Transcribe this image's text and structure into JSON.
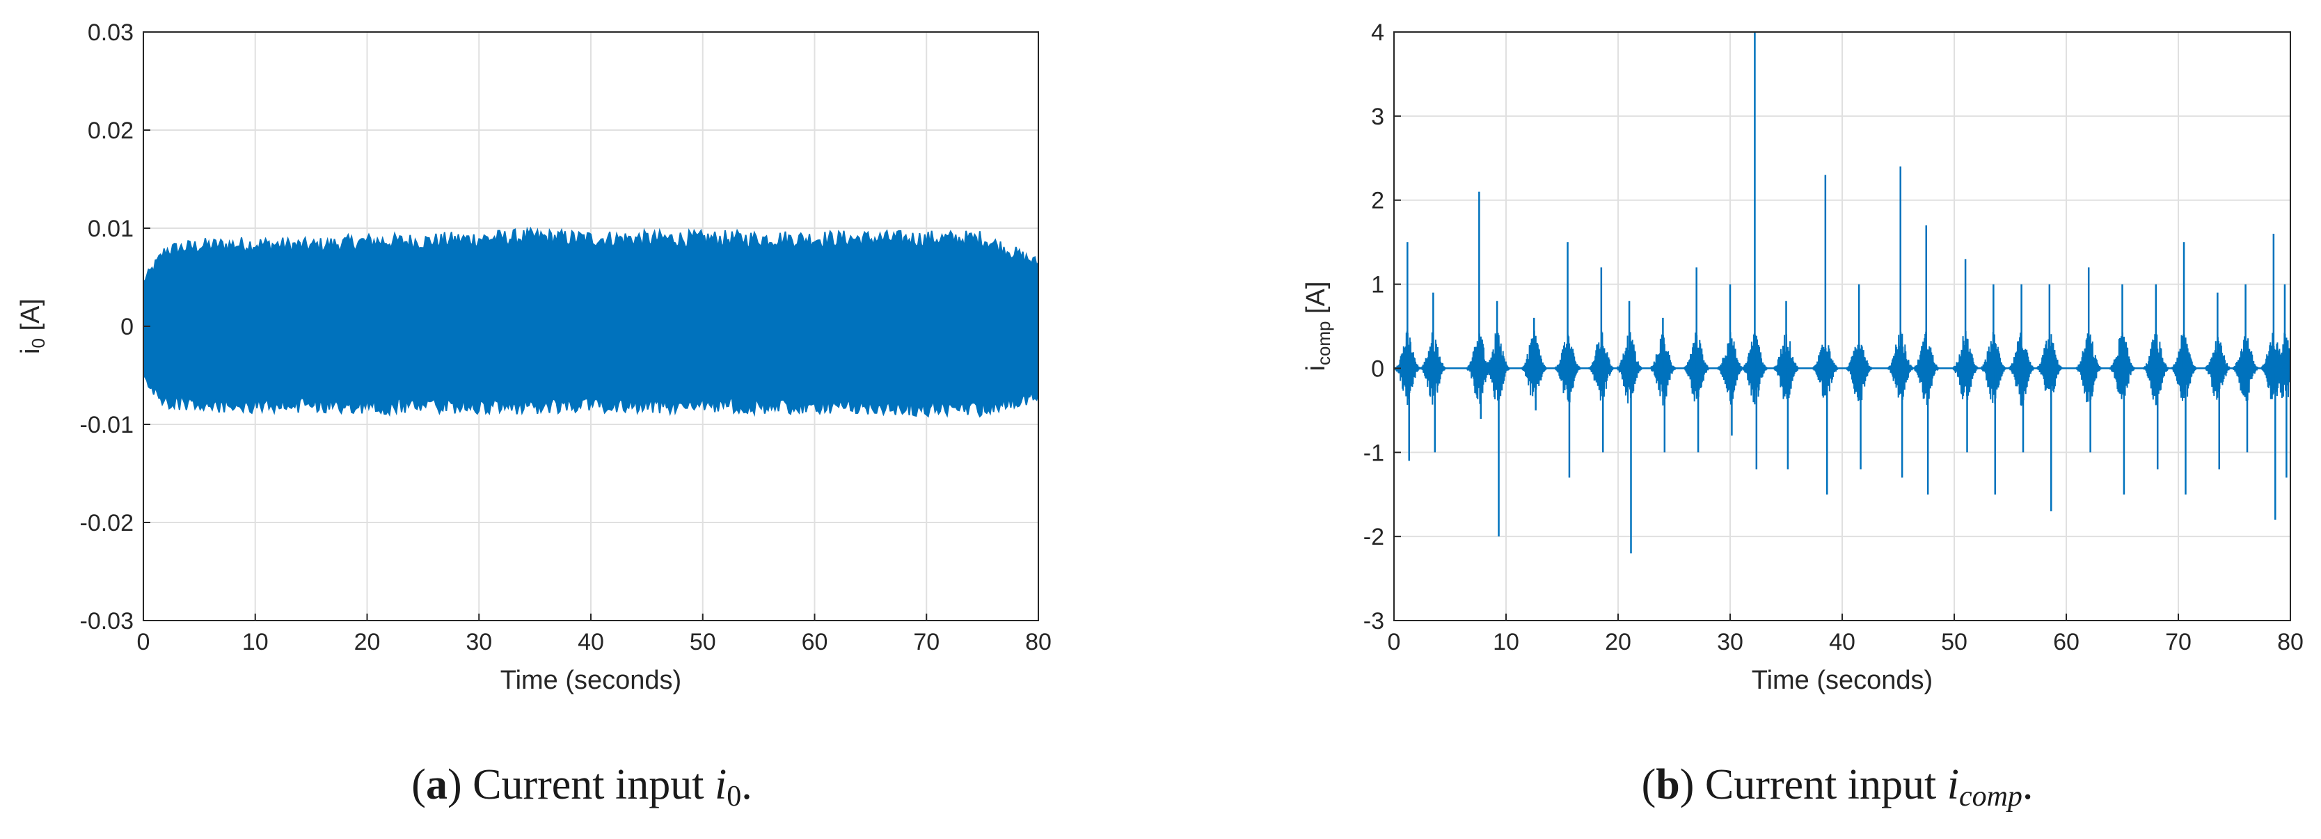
{
  "colors": {
    "series": "#0072BD",
    "grid": "#e0e0e0",
    "axis": "#262626"
  },
  "captions": [
    {
      "letter": "a",
      "text": "Current input",
      "var_main": "i",
      "var_sub": "0"
    },
    {
      "letter": "b",
      "text": "Current input",
      "var_main": "i",
      "var_sub": "comp"
    }
  ],
  "chart_data": [
    {
      "type": "line",
      "xlabel": "Time (seconds)",
      "ylabel_main": "i",
      "ylabel_sub": "0",
      "ylabel_unit": "[A]",
      "xlim": [
        0,
        80
      ],
      "ylim": [
        -0.03,
        0.03
      ],
      "xticks": [
        0,
        10,
        20,
        30,
        40,
        50,
        60,
        70,
        80
      ],
      "yticks": [
        -0.03,
        -0.02,
        -0.01,
        0,
        0.01,
        0.02,
        0.03
      ],
      "ytick_labels": [
        "-0.03",
        "-0.02",
        "-0.01",
        "0",
        "0.01",
        "0.02",
        "0.03"
      ],
      "grid": true,
      "envelope": {
        "x": [
          0,
          2,
          5,
          10,
          15,
          20,
          25,
          30,
          35,
          40,
          45,
          50,
          55,
          60,
          65,
          70,
          75,
          80
        ],
        "upper": [
          0.005,
          0.0085,
          0.009,
          0.0092,
          0.009,
          0.0095,
          0.0095,
          0.0098,
          0.01,
          0.0098,
          0.0098,
          0.0098,
          0.0098,
          0.0098,
          0.0098,
          0.0098,
          0.0098,
          0.007
        ],
        "lower": [
          -0.006,
          -0.0085,
          -0.0088,
          -0.009,
          -0.0088,
          -0.009,
          -0.009,
          -0.009,
          -0.009,
          -0.009,
          -0.009,
          -0.009,
          -0.009,
          -0.009,
          -0.009,
          -0.0092,
          -0.0092,
          -0.008
        ]
      }
    },
    {
      "type": "line",
      "xlabel": "Time (seconds)",
      "ylabel_main": "i",
      "ylabel_sub": "comp",
      "ylabel_unit": "[A]",
      "xlim": [
        0,
        80
      ],
      "ylim": [
        -3,
        4
      ],
      "xticks": [
        0,
        10,
        20,
        30,
        40,
        50,
        60,
        70,
        80
      ],
      "yticks": [
        -3,
        -2,
        -1,
        0,
        1,
        2,
        3,
        4
      ],
      "ytick_labels": [
        "-3",
        "-2",
        "-1",
        "0",
        "1",
        "2",
        "3",
        "4"
      ],
      "grid": true,
      "baseline": 0,
      "bursts": [
        {
          "x": 1.2,
          "high": 1.5,
          "low": -1.1
        },
        {
          "x": 3.5,
          "high": 0.9,
          "low": -1.0
        },
        {
          "x": 7.6,
          "high": 2.1,
          "low": -0.6
        },
        {
          "x": 9.2,
          "high": 0.8,
          "low": -2.0
        },
        {
          "x": 12.5,
          "high": 0.6,
          "low": -0.5
        },
        {
          "x": 15.5,
          "high": 1.5,
          "low": -1.3
        },
        {
          "x": 18.5,
          "high": 1.2,
          "low": -1.0
        },
        {
          "x": 21.0,
          "high": 0.8,
          "low": -2.2
        },
        {
          "x": 24.0,
          "high": 0.6,
          "low": -1.0
        },
        {
          "x": 27.0,
          "high": 1.2,
          "low": -1.0
        },
        {
          "x": 30.0,
          "high": 1.0,
          "low": -0.8
        },
        {
          "x": 32.2,
          "high": 4.0,
          "low": -1.2
        },
        {
          "x": 35.0,
          "high": 0.8,
          "low": -1.2
        },
        {
          "x": 38.5,
          "high": 2.3,
          "low": -1.5
        },
        {
          "x": 41.5,
          "high": 1.0,
          "low": -1.2
        },
        {
          "x": 45.2,
          "high": 2.4,
          "low": -1.3
        },
        {
          "x": 47.5,
          "high": 1.7,
          "low": -1.5
        },
        {
          "x": 51.0,
          "high": 1.3,
          "low": -1.0
        },
        {
          "x": 53.5,
          "high": 1.0,
          "low": -1.5
        },
        {
          "x": 56.0,
          "high": 1.0,
          "low": -1.0
        },
        {
          "x": 58.5,
          "high": 1.0,
          "low": -1.7
        },
        {
          "x": 62.0,
          "high": 1.2,
          "low": -1.0
        },
        {
          "x": 65.0,
          "high": 1.0,
          "low": -1.5
        },
        {
          "x": 68.0,
          "high": 1.0,
          "low": -1.2
        },
        {
          "x": 70.5,
          "high": 1.5,
          "low": -1.5
        },
        {
          "x": 73.5,
          "high": 0.9,
          "low": -1.2
        },
        {
          "x": 76.0,
          "high": 1.0,
          "low": -1.0
        },
        {
          "x": 78.5,
          "high": 1.6,
          "low": -1.8
        },
        {
          "x": 79.5,
          "high": 1.0,
          "low": -1.3
        }
      ]
    }
  ]
}
